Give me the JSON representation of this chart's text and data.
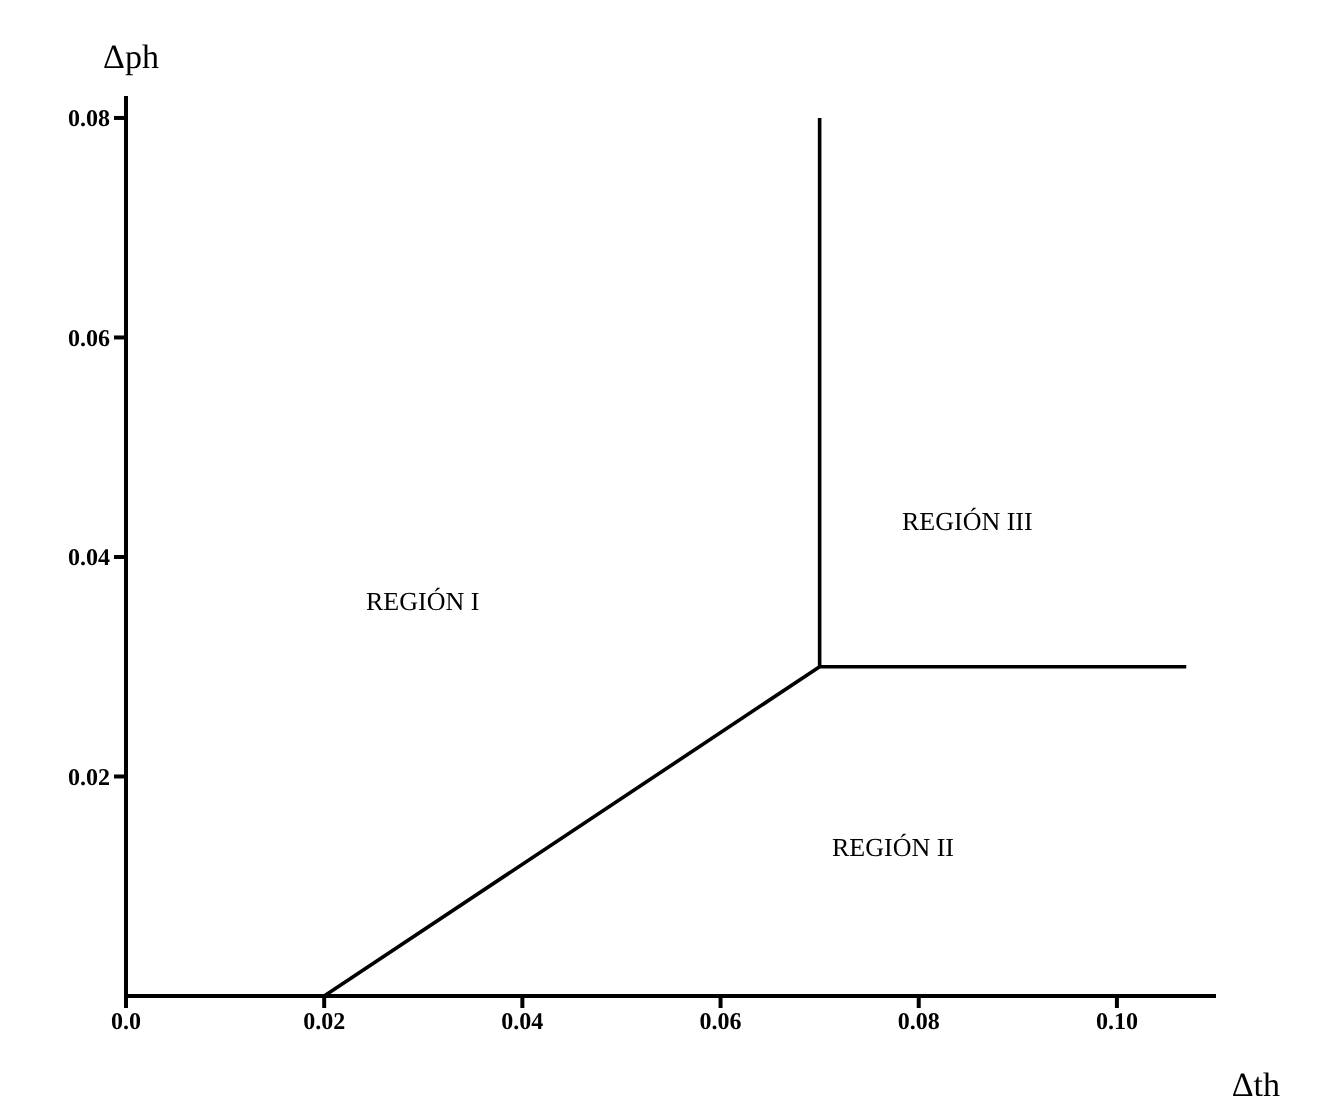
{
  "chart_data": {
    "type": "line",
    "xlabel": "Δth",
    "ylabel": "Δph",
    "series": [
      {
        "color": "#000000",
        "x": [
          0.02,
          0.07,
          0.107
        ],
        "values": [
          0,
          0.03,
          0.03
        ]
      },
      {
        "color": "#000000",
        "x": [
          0.07,
          0.07
        ],
        "values": [
          0.03,
          0.08
        ]
      }
    ],
    "xlim": [
      0,
      0.11
    ],
    "ylim": [
      0,
      0.082
    ],
    "xticks": [
      {
        "value": 0,
        "label": "0.0"
      },
      0.02,
      0.04,
      0.06,
      0.08,
      {
        "value": 0.1,
        "label": "0.10"
      }
    ],
    "yticks": [
      0.02,
      0.04,
      0.06,
      0.08
    ],
    "marker": "none",
    "line_style": "solid",
    "grid": false,
    "annotations": [
      "REGIÓN I",
      "REGIÓN II",
      "REGIÓN III"
    ]
  }
}
